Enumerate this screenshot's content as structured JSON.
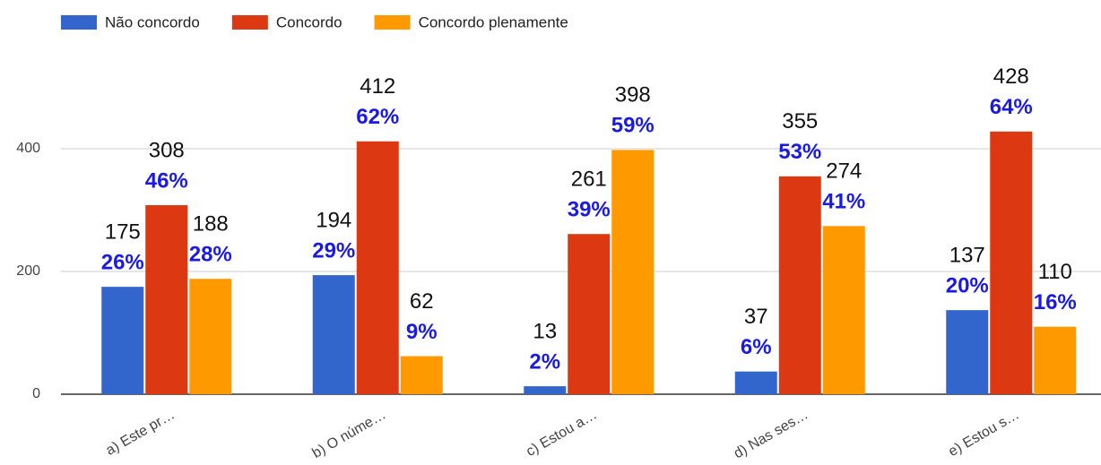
{
  "chart_data": {
    "type": "bar",
    "categories": [
      "a) Este pr…",
      "b) O núme…",
      "c) Estou a…",
      "d) Nas ses…",
      "e) Estou s…"
    ],
    "series": [
      {
        "name": "Não concordo",
        "color": "#3366cc",
        "values": [
          175,
          194,
          13,
          37,
          137
        ],
        "percent_labels": [
          "26%",
          "29%",
          "2%",
          "6%",
          "20%"
        ]
      },
      {
        "name": "Concordo",
        "color": "#dc3912",
        "values": [
          308,
          412,
          261,
          355,
          428
        ],
        "percent_labels": [
          "46%",
          "62%",
          "39%",
          "53%",
          "64%"
        ]
      },
      {
        "name": "Concordo plenamente",
        "color": "#ff9900",
        "values": [
          188,
          62,
          398,
          274,
          110
        ],
        "percent_labels": [
          "28%",
          "9%",
          "59%",
          "41%",
          "16%"
        ]
      }
    ],
    "ylim": [
      0,
      500
    ],
    "yticks": [
      0,
      200,
      400
    ],
    "grid": true,
    "legend": "top-left"
  }
}
